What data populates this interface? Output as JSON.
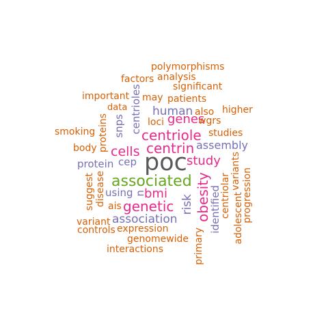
{
  "colors": {
    "orange": "#d95f02",
    "purple": "#7570b3",
    "magenta": "#e7298a",
    "green": "#66a61e",
    "gray": "#595959"
  },
  "words": [
    {
      "text": "poc",
      "color": "gray"
    },
    {
      "text": "associated",
      "color": "green"
    },
    {
      "text": "centriole",
      "color": "magenta"
    },
    {
      "text": "centrin",
      "color": "magenta"
    },
    {
      "text": "obesity",
      "color": "magenta"
    },
    {
      "text": "genetic",
      "color": "magenta"
    },
    {
      "text": "cells",
      "color": "magenta"
    },
    {
      "text": "genes",
      "color": "magenta"
    },
    {
      "text": "study",
      "color": "magenta"
    },
    {
      "text": "bmi",
      "color": "magenta"
    },
    {
      "text": "association",
      "color": "purple"
    },
    {
      "text": "human",
      "color": "purple"
    },
    {
      "text": "assembly",
      "color": "purple"
    },
    {
      "text": "risk",
      "color": "purple"
    },
    {
      "text": "identified",
      "color": "purple"
    },
    {
      "text": "centrioles",
      "color": "purple"
    },
    {
      "text": "protein",
      "color": "purple"
    },
    {
      "text": "cep",
      "color": "purple"
    },
    {
      "text": "snps",
      "color": "purple"
    },
    {
      "text": "using",
      "color": "purple"
    },
    {
      "text": "n",
      "color": "purple"
    },
    {
      "text": "polymorphisms",
      "color": "orange"
    },
    {
      "text": "analysis",
      "color": "orange"
    },
    {
      "text": "factors",
      "color": "orange"
    },
    {
      "text": "significant",
      "color": "orange"
    },
    {
      "text": "important",
      "color": "orange"
    },
    {
      "text": "may",
      "color": "orange"
    },
    {
      "text": "patients",
      "color": "orange"
    },
    {
      "text": "data",
      "color": "orange"
    },
    {
      "text": "also",
      "color": "orange"
    },
    {
      "text": "higher",
      "color": "orange"
    },
    {
      "text": "loci",
      "color": "orange"
    },
    {
      "text": "wgrs",
      "color": "orange"
    },
    {
      "text": "smoking",
      "color": "orange"
    },
    {
      "text": "studies",
      "color": "orange"
    },
    {
      "text": "body",
      "color": "orange"
    },
    {
      "text": "proteins",
      "color": "orange"
    },
    {
      "text": "suggest",
      "color": "orange"
    },
    {
      "text": "disease",
      "color": "orange"
    },
    {
      "text": "ais",
      "color": "orange"
    },
    {
      "text": "variant",
      "color": "orange"
    },
    {
      "text": "controls",
      "color": "orange"
    },
    {
      "text": "expression",
      "color": "orange"
    },
    {
      "text": "genomewide",
      "color": "orange"
    },
    {
      "text": "interactions",
      "color": "orange"
    },
    {
      "text": "primary",
      "color": "orange"
    },
    {
      "text": "centriolar",
      "color": "orange"
    },
    {
      "text": "variants",
      "color": "orange"
    },
    {
      "text": "adolescent",
      "color": "orange"
    },
    {
      "text": "progression",
      "color": "orange"
    }
  ]
}
